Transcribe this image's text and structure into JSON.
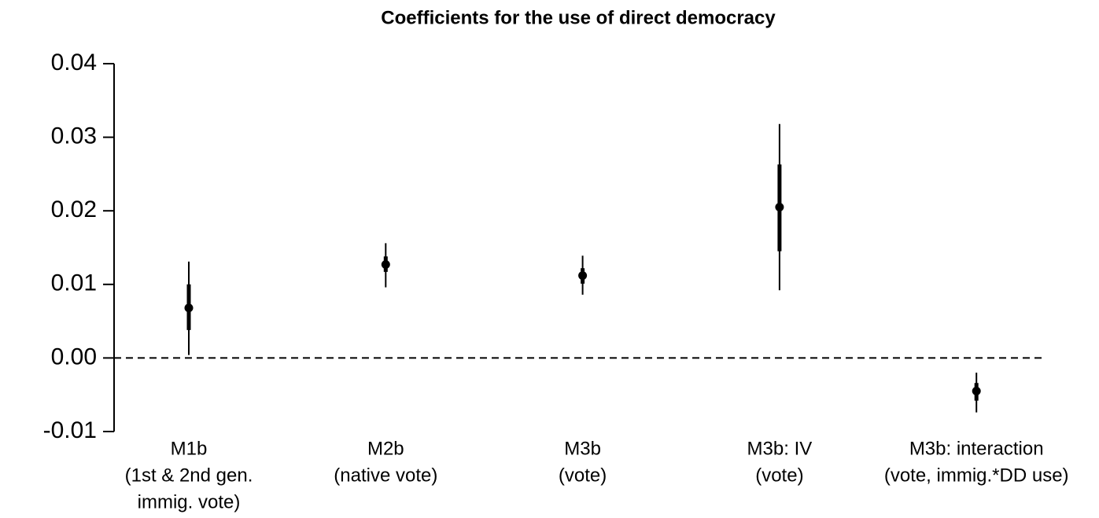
{
  "chart_data": {
    "type": "coefplot",
    "title": "Coefficients for the use of direct democracy",
    "categories": [
      [
        "M1b",
        "(1st & 2nd gen.",
        "immig. vote)"
      ],
      [
        "M2b",
        "(native vote)"
      ],
      [
        "M3b",
        "(vote)"
      ],
      [
        "M3b: IV",
        "(vote)"
      ],
      [
        "M3b: interaction",
        "(vote, immig.*DD use)"
      ]
    ],
    "values": [
      0.0068,
      0.0127,
      0.0112,
      0.0205,
      -0.0045
    ],
    "inner": [
      [
        0.0038,
        0.01
      ],
      [
        0.0117,
        0.0138
      ],
      [
        0.0101,
        0.0122
      ],
      [
        0.0145,
        0.0263
      ],
      [
        -0.0058,
        -0.0034
      ]
    ],
    "outer": [
      [
        0.0004,
        0.0131
      ],
      [
        0.0096,
        0.0156
      ],
      [
        0.0086,
        0.0139
      ],
      [
        0.0092,
        0.0318
      ],
      [
        -0.0074,
        -0.002
      ]
    ],
    "color": "#000000",
    "reference_line": 0,
    "ylim": [
      -0.01,
      0.04
    ],
    "yticks": [
      {
        "value": -0.01,
        "label": "-0.01"
      },
      {
        "value": 0,
        "label": "0.00"
      },
      {
        "value": 0.01,
        "label": "0.01"
      },
      {
        "value": 0.02,
        "label": "0.02"
      },
      {
        "value": 0.03,
        "label": "0.03"
      },
      {
        "value": 0.04,
        "label": "0.04"
      }
    ]
  }
}
